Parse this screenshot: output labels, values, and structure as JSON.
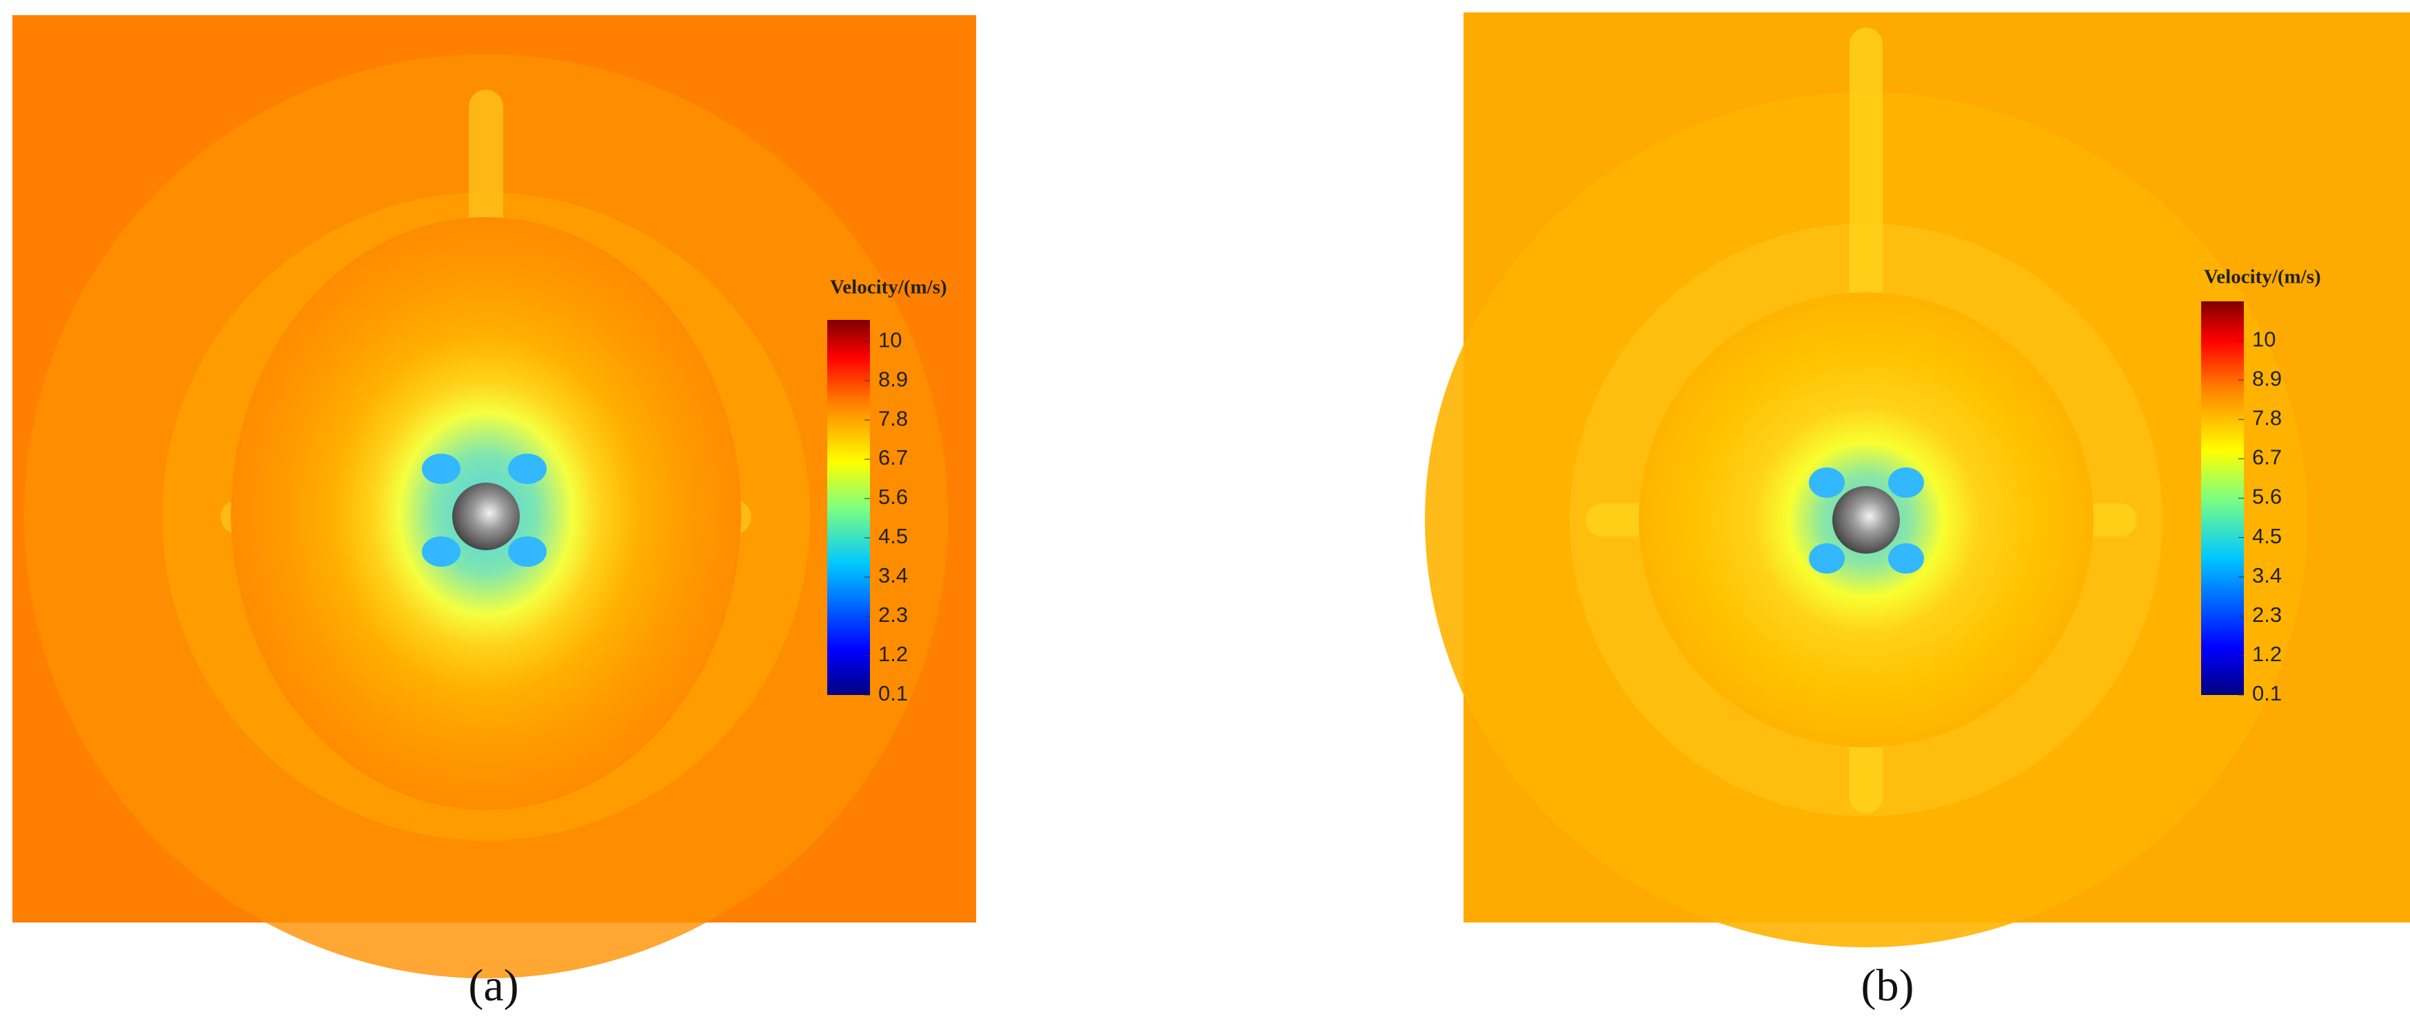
{
  "chart_data": [
    {
      "type": "contour",
      "panel_label": "(a)",
      "colorbar_title": "Velocity/(m/s)",
      "clim": [
        0.1,
        10.6
      ],
      "cticks": [
        0.1,
        1.2,
        2.3,
        3.4,
        4.5,
        5.6,
        6.7,
        7.8,
        8.9,
        10
      ]
    },
    {
      "type": "contour",
      "panel_label": "(b)",
      "colorbar_title": "Velocity/(m/s)",
      "clim": [
        0.1,
        11.1
      ],
      "cticks": [
        0.1,
        1.2,
        2.3,
        3.4,
        4.5,
        5.6,
        6.7,
        7.8,
        8.9,
        10
      ]
    }
  ]
}
